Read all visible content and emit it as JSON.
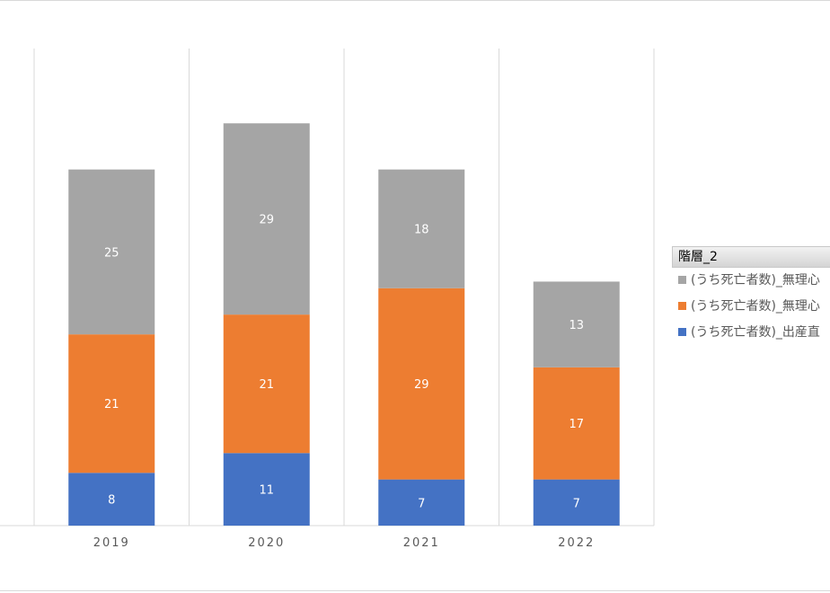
{
  "chart_data": {
    "type": "bar",
    "stacked": true,
    "categories": [
      "2019",
      "2020",
      "2021",
      "2022"
    ],
    "series": [
      {
        "name": "(うち死亡者数)_出産直",
        "color": "#4472c4",
        "values": [
          8,
          11,
          7,
          7
        ]
      },
      {
        "name": "(うち死亡者数)_無理心",
        "color": "#ed7d31",
        "values": [
          21,
          21,
          29,
          17
        ]
      },
      {
        "name": "(うち死亡者数)_無理心",
        "color": "#a5a5a5",
        "values": [
          25,
          29,
          18,
          13
        ]
      }
    ],
    "ylim": [
      0,
      70
    ],
    "grid": "vertical category separators",
    "legend": {
      "title": "階層_2",
      "placement": "right",
      "items": [
        "(うち死亡者数)_無理心",
        "(うち死亡者数)_無理心",
        "(うち死亡者数)_出産直"
      ],
      "item_colors": [
        "#a5a5a5",
        "#ed7d31",
        "#4472c4"
      ]
    },
    "data_label_color": "#ffffff",
    "tick_label_color": "#595959"
  }
}
